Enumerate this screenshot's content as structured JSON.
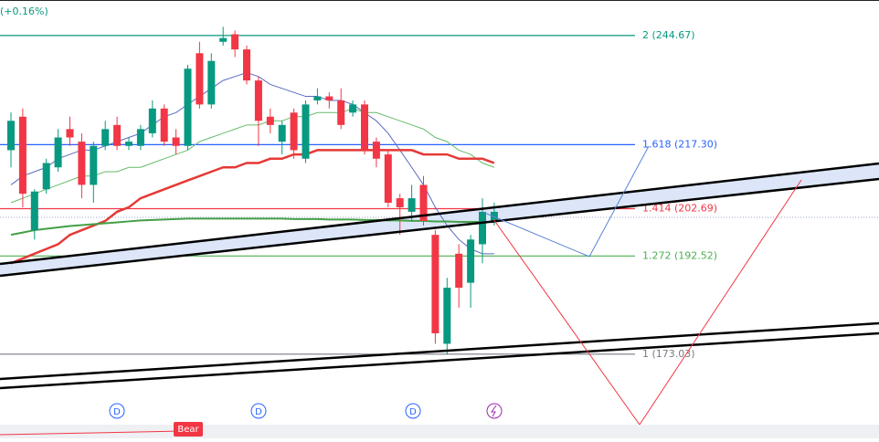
{
  "chart_data": {
    "type": "candlestick",
    "change_label": "(+0.16%)",
    "log_scale": true,
    "ylim": [
      157.9,
      254.3
    ],
    "up_color": "#089981",
    "down_color": "#f23645",
    "open": [
      216,
      224,
      198,
      207,
      212,
      221,
      218,
      208,
      217,
      222,
      217,
      217,
      220,
      226,
      219,
      217,
      240,
      227,
      243,
      245,
      241,
      233,
      224,
      218,
      225,
      214,
      228,
      229,
      228,
      225,
      227,
      218,
      215,
      205,
      202,
      208,
      197,
      175,
      193,
      187,
      195,
      200
    ],
    "high": [
      225,
      226,
      207,
      214,
      221,
      224,
      220,
      218,
      223,
      224,
      219,
      222,
      228,
      227,
      221,
      237,
      243,
      240,
      247,
      246,
      242,
      234,
      226,
      223,
      226,
      228,
      231,
      230,
      231,
      228,
      228,
      219,
      216,
      206,
      208,
      210,
      198,
      188,
      195,
      197,
      205,
      204
    ],
    "low": [
      212,
      203,
      196,
      206,
      211,
      217,
      205,
      204,
      216,
      216,
      216,
      216,
      219,
      217,
      215,
      216,
      226,
      226,
      242,
      239,
      232,
      217,
      220,
      215,
      214,
      213,
      227,
      226,
      221,
      224,
      215,
      212,
      203,
      197,
      200,
      199,
      175,
      173,
      182,
      182,
      191,
      199
    ],
    "close": [
      223,
      206,
      206.5,
      213,
      219,
      219,
      208,
      217,
      221,
      217,
      218,
      221,
      226,
      218,
      217,
      236,
      227,
      238,
      244,
      241,
      233,
      223,
      222,
      222,
      216,
      227,
      229,
      228,
      222,
      227,
      216,
      214,
      204,
      203,
      205,
      200,
      177,
      186,
      186,
      196,
      202,
      202
    ],
    "series": [
      {
        "color": "#5b6bbf",
        "values": [
          208,
          210,
          211,
          212,
          214,
          215,
          216,
          216,
          217,
          218,
          219,
          220,
          222,
          224,
          225,
          227,
          229,
          231,
          233,
          234,
          235,
          234,
          232,
          231,
          230,
          229,
          229,
          228,
          228,
          227,
          225,
          223,
          220,
          216,
          212,
          208,
          203,
          199,
          196,
          194,
          193,
          193
        ]
      },
      {
        "color": "#66bb6a",
        "values": [
          204,
          205,
          206,
          207,
          208,
          209,
          210,
          210,
          211,
          211,
          212,
          212,
          213,
          214,
          215,
          216,
          218,
          219,
          220,
          221,
          222,
          222,
          223,
          223,
          224,
          224,
          225,
          225,
          225,
          226,
          225,
          225,
          224,
          223,
          222,
          221,
          219,
          218,
          216,
          215,
          213,
          212
        ]
      },
      {
        "color": "#e53935",
        "values": [
          191,
          192,
          193,
          194,
          195,
          197,
          198,
          199,
          200,
          202,
          203,
          205,
          206,
          207,
          208,
          209,
          210,
          211,
          212,
          212,
          213,
          213,
          214,
          214,
          215,
          215,
          216,
          216,
          216,
          216,
          216,
          216,
          216,
          216,
          216,
          215,
          215,
          215,
          214,
          214,
          214,
          213
        ]
      },
      {
        "color": "#43a047",
        "values": [
          197,
          197.5,
          198,
          198.3,
          198.6,
          198.9,
          199.1,
          199.3,
          199.5,
          199.7,
          199.9,
          200.1,
          200.2,
          200.3,
          200.4,
          200.5,
          200.5,
          200.5,
          200.5,
          200.5,
          200.5,
          200.5,
          200.5,
          200.5,
          200.4,
          200.4,
          200.4,
          200.3,
          200.3,
          200.3,
          200.2,
          200.2,
          200.1,
          200.1,
          200.0,
          200.0,
          199.9,
          199.9,
          199.8,
          199.8,
          199.8,
          199.8
        ]
      }
    ],
    "levels": [
      {
        "price": 244.67,
        "label": "2 (244.67)",
        "color": "#089981"
      },
      {
        "price": 217.3,
        "label": "1.618 (217.30)",
        "color": "#2962ff"
      },
      {
        "price": 202.69,
        "label": "1.414 (202.69)",
        "color": "#f23645"
      },
      {
        "price": 192.52,
        "label": "1.272 (192.52)",
        "color": "#4caf50"
      },
      {
        "price": 173.03,
        "label": "1 (173.03)",
        "color": "#787b86"
      }
    ],
    "markers": [
      "D",
      "D",
      "D"
    ],
    "signal_label": "Bear"
  }
}
